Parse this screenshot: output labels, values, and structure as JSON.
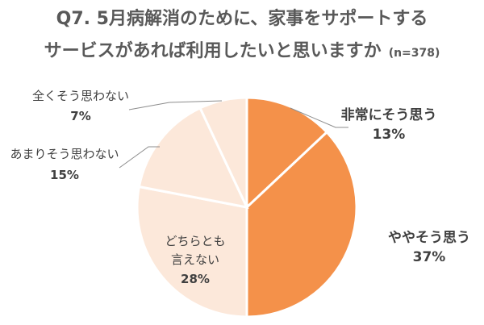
{
  "chart_data": {
    "type": "pie",
    "title_lines": [
      "Q7. 5月病解消のために、家事をサポートする",
      "サービスがあれば利用したいと思いますか"
    ],
    "note": "(n=378)",
    "slices": [
      {
        "label": "非常にそう思う",
        "value": 13,
        "value_label": "13%",
        "color": "#F4914A"
      },
      {
        "label": "ややそう思う",
        "value": 37,
        "value_label": "37%",
        "color": "#F4914A"
      },
      {
        "label": "どちらとも言えない",
        "label_lines": [
          "どちらとも",
          "言えない"
        ],
        "value": 28,
        "value_label": "28%",
        "color": "#FCE8DA"
      },
      {
        "label": "あまりそう思わない",
        "value": 15,
        "value_label": "15%",
        "color": "#FCE8DA"
      },
      {
        "label": "全くそう思わない",
        "value": 7,
        "value_label": "7%",
        "color": "#FCE8DA"
      }
    ],
    "start_angle": "12 o'clock",
    "direction": "clockwise"
  }
}
